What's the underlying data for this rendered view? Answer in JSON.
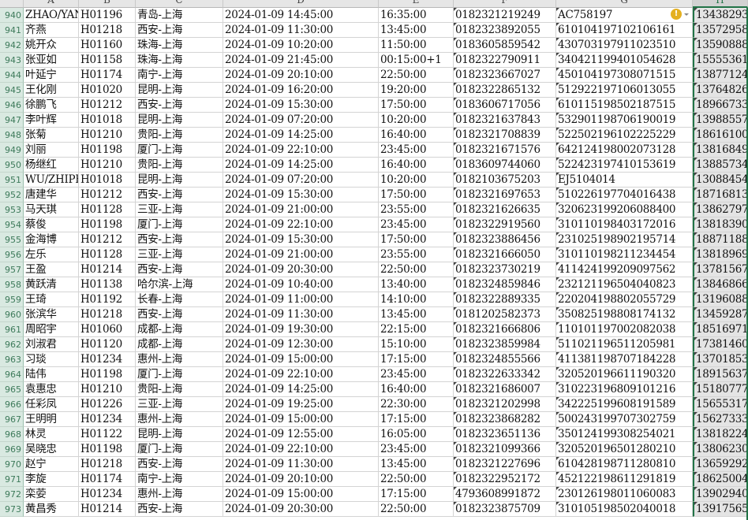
{
  "columns": [
    "A",
    "B",
    "C",
    "D",
    "E",
    "F",
    "G",
    "H"
  ],
  "selected_column": "H",
  "accent_color": "#217346",
  "warning_icon": "error-indicator-icon",
  "rows": [
    {
      "n": "940",
      "c": [
        "ZHAO/YAN",
        "H01196",
        "青岛-上海",
        "2024-01-09 14:45:00",
        "16:35:00",
        "0182321219249",
        "AC758197",
        "13438293"
      ]
    },
    {
      "n": "941",
      "c": [
        "齐燕",
        "H01218",
        "西安-上海",
        "2024-01-09 11:30:00",
        "13:45:00",
        "0182323892055",
        "610104197102106161",
        "13572958"
      ]
    },
    {
      "n": "942",
      "c": [
        "姚开众",
        "H01160",
        "珠海-上海",
        "2024-01-09 10:20:00",
        "11:50:00",
        "0183605859542",
        "430703197911023510",
        "13590888"
      ]
    },
    {
      "n": "943",
      "c": [
        "张亚如",
        "H01158",
        "珠海-上海",
        "2024-01-09 21:45:00",
        "00:15:00+1",
        "0182322790911",
        "340421199401054628",
        "15555361"
      ]
    },
    {
      "n": "944",
      "c": [
        "叶延宁",
        "H01174",
        "南宁-上海",
        "2024-01-09 20:10:00",
        "22:50:00",
        "0182323667027",
        "450104197308071515",
        "13877124"
      ]
    },
    {
      "n": "945",
      "c": [
        "王化刚",
        "H01020",
        "昆明-上海",
        "2024-01-09 16:20:00",
        "19:20:00",
        "0182322865132",
        "512922197106013055",
        "13764826"
      ]
    },
    {
      "n": "946",
      "c": [
        "徐鹏飞",
        "H01212",
        "西安-上海",
        "2024-01-09 15:30:00",
        "17:50:00",
        "0183606717056",
        "610115198502187515",
        "18966733"
      ]
    },
    {
      "n": "947",
      "c": [
        "李叶辉",
        "H01018",
        "昆明-上海",
        "2024-01-09 07:20:00",
        "10:20:00",
        "0182321637843",
        "532901198706190019",
        "13988557"
      ]
    },
    {
      "n": "948",
      "c": [
        "张菊",
        "H01210",
        "贵阳-上海",
        "2024-01-09 14:25:00",
        "16:40:00",
        "0182321708839",
        "522502196102225229",
        "18616100"
      ]
    },
    {
      "n": "949",
      "c": [
        "刘丽",
        "H01198",
        "厦门-上海",
        "2024-01-09 22:10:00",
        "23:45:00",
        "0182321671576",
        "642124198002073128",
        "13816849"
      ]
    },
    {
      "n": "950",
      "c": [
        "杨继红",
        "H01210",
        "贵阳-上海",
        "2024-01-09 14:25:00",
        "16:40:00",
        "0183609744060",
        "522423197410153619",
        "13885734"
      ]
    },
    {
      "n": "951",
      "c": [
        "WU/ZHIPEN",
        "H01018",
        "昆明-上海",
        "2024-01-09 07:20:00",
        "10:20:00",
        "0182103675203",
        "EJ5104014",
        "13088454"
      ]
    },
    {
      "n": "952",
      "c": [
        "唐建华",
        "H01212",
        "西安-上海",
        "2024-01-09 15:30:00",
        "17:50:00",
        "0182321697653",
        "510226197704016438",
        "18716813"
      ]
    },
    {
      "n": "953",
      "c": [
        "马天琪",
        "H01128",
        "三亚-上海",
        "2024-01-09 21:00:00",
        "23:55:00",
        "0182321626635",
        "320623199206088400",
        "13862797"
      ]
    },
    {
      "n": "954",
      "c": [
        "蔡俊",
        "H01198",
        "厦门-上海",
        "2024-01-09 22:10:00",
        "23:45:00",
        "0182322919560",
        "310110198403172016",
        "13818390"
      ]
    },
    {
      "n": "955",
      "c": [
        "金海博",
        "H01212",
        "西安-上海",
        "2024-01-09 15:30:00",
        "17:50:00",
        "0182323886456",
        "231025198902195714",
        "18871188"
      ]
    },
    {
      "n": "956",
      "c": [
        "左乐",
        "H01128",
        "三亚-上海",
        "2024-01-09 21:00:00",
        "23:55:00",
        "0182321666050",
        "310110198211234454",
        "13818969"
      ]
    },
    {
      "n": "957",
      "c": [
        "王盈",
        "H01214",
        "西安-上海",
        "2024-01-09 20:30:00",
        "22:50:00",
        "0182323730219",
        "411424199209097562",
        "13781567"
      ]
    },
    {
      "n": "958",
      "c": [
        "黄跃清",
        "H01138",
        "哈尔滨-上海",
        "2024-01-09 10:40:00",
        "13:40:00",
        "0182324859846",
        "232121196504040823",
        "13846866"
      ]
    },
    {
      "n": "959",
      "c": [
        "王琦",
        "H01192",
        "长春-上海",
        "2024-01-09 11:00:00",
        "14:10:00",
        "0182322889335",
        "220204198802055729",
        "13196088"
      ]
    },
    {
      "n": "960",
      "c": [
        "张滨华",
        "H01218",
        "西安-上海",
        "2024-01-09 11:30:00",
        "13:45:00",
        "0181202582373",
        "350825198808174132",
        "13459287"
      ]
    },
    {
      "n": "961",
      "c": [
        "周昭宇",
        "H01060",
        "成都-上海",
        "2024-01-09 19:30:00",
        "22:15:00",
        "0182321666806",
        "110101197002082038",
        "18516971"
      ]
    },
    {
      "n": "962",
      "c": [
        "刘淑君",
        "H01120",
        "成都-上海",
        "2024-01-09 12:30:00",
        "15:10:00",
        "0182323859984",
        "511021196511205981",
        "17381460"
      ]
    },
    {
      "n": "963",
      "c": [
        "习琰",
        "H01234",
        "惠州-上海",
        "2024-01-09 15:00:00",
        "17:15:00",
        "0182324855566",
        "411381198707184228",
        "13701853"
      ]
    },
    {
      "n": "964",
      "c": [
        "陆伟",
        "H01198",
        "厦门-上海",
        "2024-01-09 22:10:00",
        "23:45:00",
        "0182322633342",
        "320520196611190320",
        "18915637"
      ]
    },
    {
      "n": "965",
      "c": [
        "袁惠忠",
        "H01210",
        "贵阳-上海",
        "2024-01-09 14:25:00",
        "16:40:00",
        "0182321686007",
        "310223196809101216",
        "15180777"
      ]
    },
    {
      "n": "966",
      "c": [
        "任彩凤",
        "H01226",
        "三亚-上海",
        "2024-01-09 19:25:00",
        "22:30:00",
        "0182321202998",
        "342225199608191589",
        "15655317"
      ]
    },
    {
      "n": "967",
      "c": [
        "王明明",
        "H01234",
        "惠州-上海",
        "2024-01-09 15:00:00",
        "17:15:00",
        "0182323868282",
        "500243199707302759",
        "15627333"
      ]
    },
    {
      "n": "968",
      "c": [
        "林灵",
        "H01122",
        "昆明-上海",
        "2024-01-09 12:55:00",
        "16:05:00",
        "0182323651136",
        "350124199308254021",
        "13818224"
      ]
    },
    {
      "n": "969",
      "c": [
        "吴晓忠",
        "H01198",
        "厦门-上海",
        "2024-01-09 22:10:00",
        "23:45:00",
        "0182321099366",
        "320520196501280210",
        "13806230"
      ]
    },
    {
      "n": "970",
      "c": [
        "赵宁",
        "H01218",
        "西安-上海",
        "2024-01-09 11:30:00",
        "13:45:00",
        "0182321227696",
        "610428198711280810",
        "13659292"
      ]
    },
    {
      "n": "971",
      "c": [
        "李旋",
        "H01174",
        "南宁-上海",
        "2024-01-09 20:10:00",
        "22:50:00",
        "0182322952172",
        "452122198611291819",
        "18625004"
      ]
    },
    {
      "n": "972",
      "c": [
        "栾荌",
        "H01234",
        "惠州-上海",
        "2024-01-09 15:00:00",
        "17:15:00",
        "4793608991872",
        "230126198011060083",
        "13902940"
      ]
    },
    {
      "n": "973",
      "c": [
        "黄昌秀",
        "H01214",
        "西安-上海",
        "2024-01-09 20:30:00",
        "22:50:00",
        "0182323875709",
        "310105198502040018",
        "13917565"
      ]
    }
  ]
}
